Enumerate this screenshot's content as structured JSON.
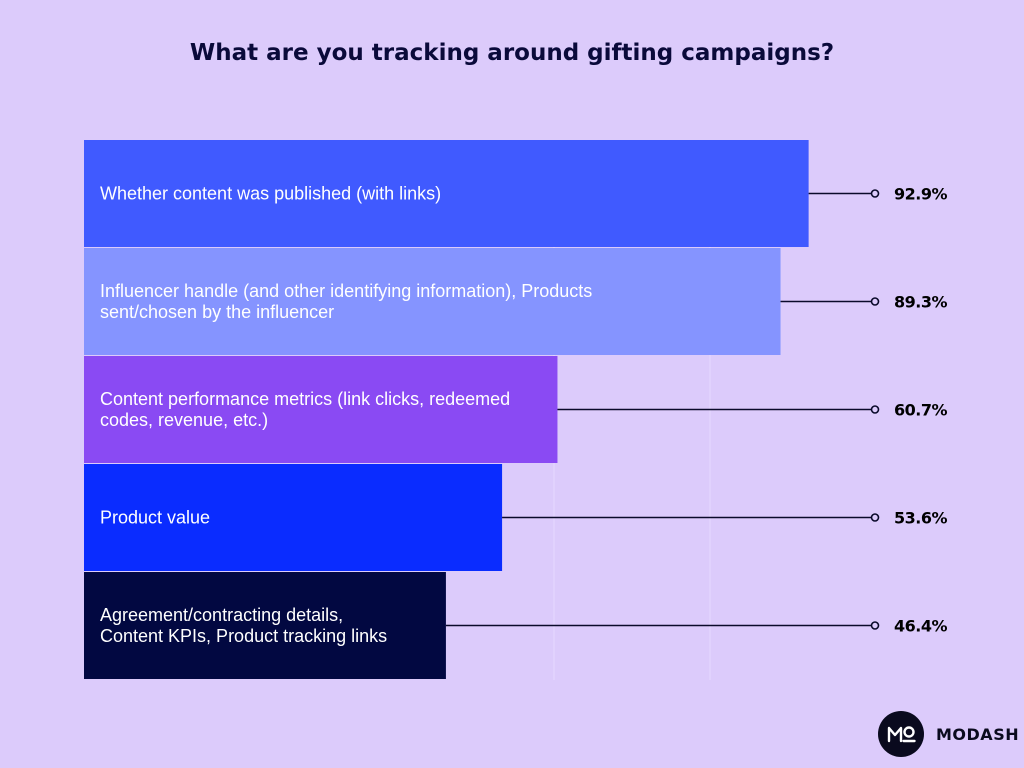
{
  "title": "What are you tracking around gifting campaigns?",
  "brand": {
    "name": "MODASH",
    "logo_icon": "modash-logo-icon"
  },
  "chart_data": {
    "type": "bar",
    "orientation": "horizontal",
    "title": "What are you tracking around gifting campaigns?",
    "xlabel": "",
    "ylabel": "",
    "grid": true,
    "legend": "none",
    "categories": [
      [
        "Whether content was published (with links)"
      ],
      [
        "Influencer handle (and other identifying information), Products",
        "sent/chosen by the influencer"
      ],
      [
        "Content performance metrics (link clicks, redeemed",
        "codes, revenue, etc.)"
      ],
      [
        "Product value"
      ],
      [
        "Agreement/contracting details,",
        "Content KPIs, Product tracking links"
      ]
    ],
    "values": [
      92.9,
      89.3,
      60.7,
      53.6,
      46.4
    ],
    "value_labels": [
      "92.9%",
      "89.3%",
      "60.7%",
      "53.6%",
      "46.4%"
    ],
    "unit": "%",
    "xlim": [
      0,
      100
    ],
    "colors": [
      "#405aff",
      "#8594ff",
      "#8a4af3",
      "#0a2cff",
      "#020841"
    ],
    "label_colors": [
      "#ffffff",
      "#ffffff",
      "#ffffff",
      "#ffffff",
      "#ffffff"
    ]
  }
}
